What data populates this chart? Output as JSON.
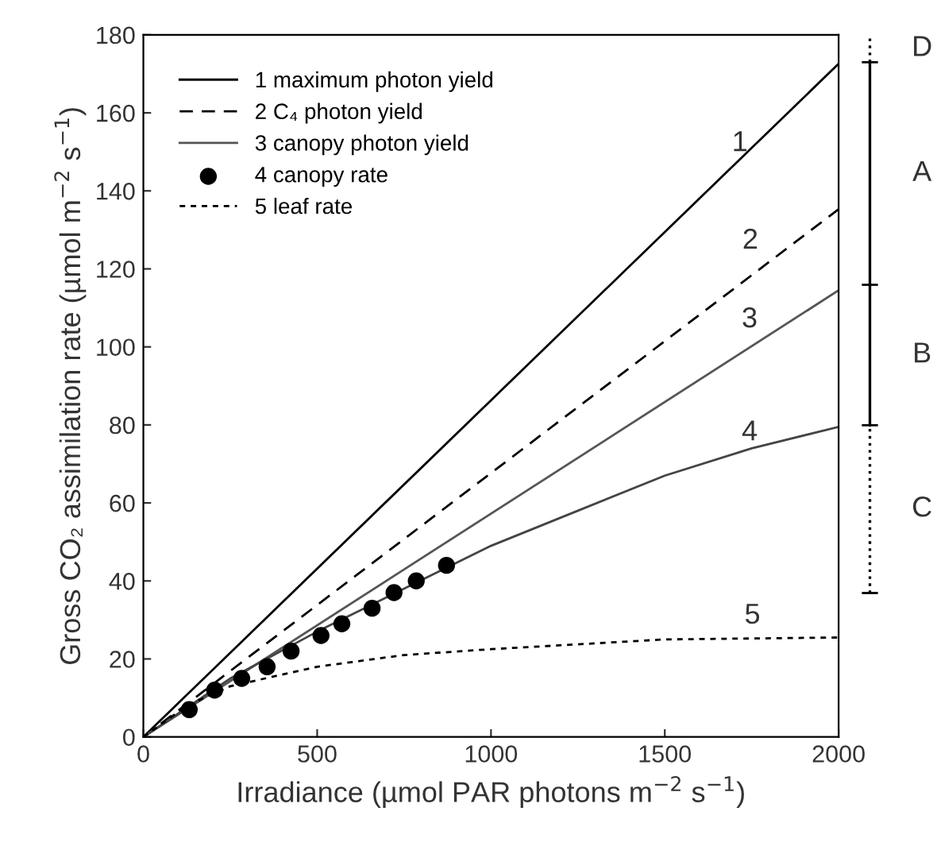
{
  "chart_data": {
    "type": "line",
    "xlabel": "Irradiance (µmol PAR photons m$^{−2}$ s$^{−1}$)",
    "ylabel": "Gross CO₂ assimilation rate (µmol m$^{−2}$ s$^{−1}$)",
    "xlim": [
      0,
      2000
    ],
    "xticks": [
      0,
      500,
      1000,
      1500,
      2000
    ],
    "ylim": [
      0,
      180
    ],
    "yticks": [
      0,
      20,
      40,
      60,
      80,
      100,
      120,
      140,
      160,
      180
    ],
    "grid": false,
    "legend": "top left",
    "series": [
      {
        "name": "1 maximum photon yield",
        "line_style": "solid",
        "color": "#000000",
        "x": [
          0,
          2000
        ],
        "values": [
          0,
          172.6
        ]
      },
      {
        "name": "2 C₄ photon yield",
        "line_style": "dashed",
        "color": "#000000",
        "x": [
          0,
          2000
        ],
        "values": [
          0,
          135.3
        ]
      },
      {
        "name": "3 canopy photon yield",
        "line_style": "solid",
        "color": "#555555",
        "x": [
          0,
          2000
        ],
        "values": [
          0,
          114.5
        ]
      },
      {
        "name": "4 canopy rate",
        "type": "scatter",
        "marker": "circle",
        "color": "#000000",
        "x": [
          132,
          205,
          283,
          356,
          425,
          511,
          571,
          658,
          721,
          785,
          872
        ],
        "values": [
          7,
          12,
          15,
          18,
          22,
          26,
          29,
          33,
          37,
          40,
          44
        ]
      },
      {
        "line_style": "solid",
        "color": "#444444",
        "x": [
          0,
          250,
          500,
          750,
          1000,
          1250,
          1500,
          1750,
          2000
        ],
        "values": [
          0,
          15,
          27,
          38,
          49,
          58,
          67,
          74,
          79.5
        ]
      },
      {
        "name": "5 leaf rate",
        "line_style": "dotted",
        "color": "#000000",
        "x": [
          0,
          125,
          250,
          500,
          750,
          1000,
          1500,
          2000
        ],
        "values": [
          0,
          8,
          13,
          18,
          21,
          22.5,
          25,
          25.5
        ]
      }
    ],
    "annotations": [
      "1",
      "2",
      "3",
      "4",
      "5",
      "D",
      "A",
      "B",
      "C"
    ]
  }
}
